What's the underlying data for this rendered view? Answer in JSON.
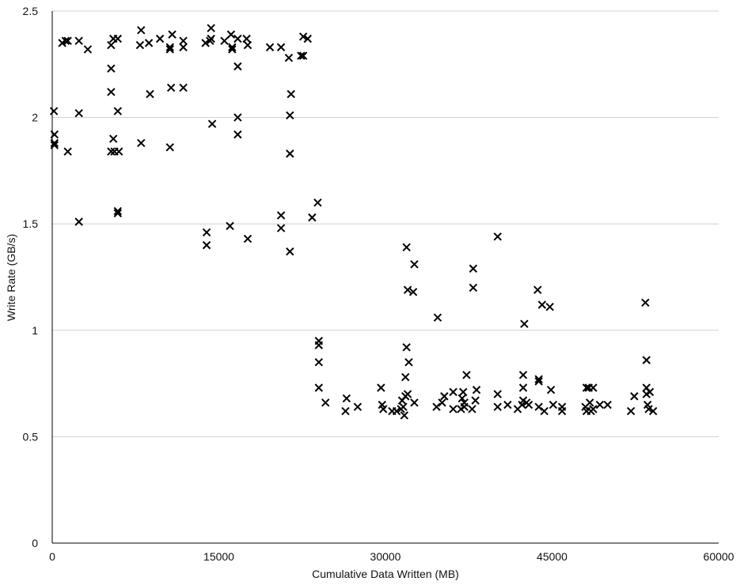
{
  "colors": {
    "grid": "#d0d0d0",
    "axis": "#000000",
    "marker": "#000000",
    "background": "#ffffff"
  },
  "chart_data": {
    "type": "scatter",
    "title": "",
    "xlabel": "Cumulative Data Written (MB)",
    "ylabel": "Write Rate (GB/s)",
    "xlim": [
      0,
      60000
    ],
    "ylim": [
      0,
      2.5
    ],
    "xticks": [
      0,
      15000,
      30000,
      45000,
      60000
    ],
    "xtick_labels": [
      "0",
      "15000",
      "30000",
      "45000",
      "60000"
    ],
    "yticks": [
      0,
      0.5,
      1,
      1.5,
      2,
      2.5
    ],
    "ytick_labels": [
      "0",
      "0.5",
      "1",
      "1.5",
      "2",
      "2.5"
    ],
    "grid": "horizontal",
    "marker": "x",
    "series": [
      {
        "name": "Write Rate",
        "points": [
          [
            150,
            2.03
          ],
          [
            200,
            1.92
          ],
          [
            200,
            1.88
          ],
          [
            200,
            1.87
          ],
          [
            900,
            2.35
          ],
          [
            1200,
            2.36
          ],
          [
            1400,
            2.36
          ],
          [
            1400,
            1.84
          ],
          [
            2400,
            2.36
          ],
          [
            2400,
            2.02
          ],
          [
            2400,
            1.51
          ],
          [
            3200,
            2.32
          ],
          [
            5300,
            2.34
          ],
          [
            5500,
            2.37
          ],
          [
            5300,
            2.23
          ],
          [
            5300,
            2.12
          ],
          [
            5500,
            1.9
          ],
          [
            5300,
            1.84
          ],
          [
            5600,
            1.84
          ],
          [
            6000,
            1.84
          ],
          [
            5900,
            2.37
          ],
          [
            5900,
            2.03
          ],
          [
            5900,
            1.56
          ],
          [
            5900,
            1.55
          ],
          [
            7900,
            2.34
          ],
          [
            8000,
            2.41
          ],
          [
            8000,
            1.88
          ],
          [
            8700,
            2.35
          ],
          [
            8800,
            2.11
          ],
          [
            9700,
            2.37
          ],
          [
            10600,
            2.33
          ],
          [
            10600,
            2.32
          ],
          [
            10800,
            2.39
          ],
          [
            10700,
            2.14
          ],
          [
            10600,
            1.86
          ],
          [
            11800,
            2.33
          ],
          [
            11800,
            2.36
          ],
          [
            11800,
            2.14
          ],
          [
            13800,
            2.35
          ],
          [
            14200,
            2.36
          ],
          [
            14300,
            2.37
          ],
          [
            14300,
            2.42
          ],
          [
            14400,
            1.97
          ],
          [
            13900,
            1.46
          ],
          [
            13900,
            1.4
          ],
          [
            15500,
            2.36
          ],
          [
            16100,
            2.39
          ],
          [
            16200,
            2.32
          ],
          [
            16200,
            2.33
          ],
          [
            16700,
            2.37
          ],
          [
            16700,
            2.24
          ],
          [
            16700,
            2.0
          ],
          [
            16700,
            1.92
          ],
          [
            16000,
            1.49
          ],
          [
            17500,
            2.37
          ],
          [
            17600,
            2.34
          ],
          [
            17600,
            1.43
          ],
          [
            19600,
            2.33
          ],
          [
            20600,
            2.33
          ],
          [
            21300,
            2.28
          ],
          [
            21500,
            2.11
          ],
          [
            21400,
            2.01
          ],
          [
            21400,
            1.83
          ],
          [
            20600,
            1.54
          ],
          [
            20600,
            1.48
          ],
          [
            21400,
            1.37
          ],
          [
            22400,
            2.29
          ],
          [
            22600,
            2.29
          ],
          [
            22600,
            2.38
          ],
          [
            23000,
            2.37
          ],
          [
            23400,
            1.53
          ],
          [
            23900,
            1.6
          ],
          [
            24000,
            0.95
          ],
          [
            24000,
            0.93
          ],
          [
            24000,
            0.85
          ],
          [
            24000,
            0.73
          ],
          [
            24600,
            0.66
          ],
          [
            26400,
            0.62
          ],
          [
            26500,
            0.68
          ],
          [
            27500,
            0.64
          ],
          [
            29600,
            0.73
          ],
          [
            29700,
            0.65
          ],
          [
            29800,
            0.63
          ],
          [
            30600,
            0.62
          ],
          [
            31000,
            0.62
          ],
          [
            31400,
            0.63
          ],
          [
            31500,
            0.67
          ],
          [
            31600,
            0.64
          ],
          [
            31700,
            0.6
          ],
          [
            31800,
            0.78
          ],
          [
            31800,
            0.69
          ],
          [
            31900,
            0.92
          ],
          [
            32000,
            0.7
          ],
          [
            32100,
            0.85
          ],
          [
            31900,
            1.39
          ],
          [
            32000,
            1.19
          ],
          [
            32500,
            1.18
          ],
          [
            32600,
            1.31
          ],
          [
            32600,
            0.66
          ],
          [
            34700,
            1.06
          ],
          [
            34600,
            0.64
          ],
          [
            35100,
            0.66
          ],
          [
            35300,
            0.69
          ],
          [
            36100,
            0.71
          ],
          [
            36100,
            0.63
          ],
          [
            36800,
            0.63
          ],
          [
            36900,
            0.68
          ],
          [
            37000,
            0.71
          ],
          [
            37100,
            0.66
          ],
          [
            37100,
            0.64
          ],
          [
            37300,
            0.79
          ],
          [
            37800,
            0.63
          ],
          [
            37900,
            1.29
          ],
          [
            37900,
            1.2
          ],
          [
            38100,
            0.67
          ],
          [
            38200,
            0.72
          ],
          [
            40100,
            1.44
          ],
          [
            40100,
            0.7
          ],
          [
            40100,
            0.64
          ],
          [
            41000,
            0.65
          ],
          [
            41900,
            0.63
          ],
          [
            42300,
            0.65
          ],
          [
            42400,
            0.79
          ],
          [
            42400,
            0.73
          ],
          [
            42400,
            0.67
          ],
          [
            42500,
            1.03
          ],
          [
            42700,
            0.66
          ],
          [
            42900,
            0.65
          ],
          [
            43700,
            1.19
          ],
          [
            43800,
            0.77
          ],
          [
            43800,
            0.76
          ],
          [
            43800,
            0.64
          ],
          [
            44100,
            1.12
          ],
          [
            44300,
            0.62
          ],
          [
            44800,
            1.11
          ],
          [
            44900,
            0.72
          ],
          [
            45100,
            0.65
          ],
          [
            45900,
            0.64
          ],
          [
            45900,
            0.62
          ],
          [
            48000,
            0.64
          ],
          [
            48100,
            0.62
          ],
          [
            48100,
            0.73
          ],
          [
            48300,
            0.73
          ],
          [
            48400,
            0.66
          ],
          [
            48500,
            0.62
          ],
          [
            48700,
            0.63
          ],
          [
            48700,
            0.73
          ],
          [
            49300,
            0.65
          ],
          [
            50000,
            0.65
          ],
          [
            52100,
            0.62
          ],
          [
            52400,
            0.69
          ],
          [
            53400,
            1.13
          ],
          [
            53500,
            0.86
          ],
          [
            53500,
            0.73
          ],
          [
            53500,
            0.7
          ],
          [
            53700,
            0.63
          ],
          [
            53600,
            0.65
          ],
          [
            53800,
            0.71
          ],
          [
            54100,
            0.62
          ]
        ]
      }
    ]
  }
}
